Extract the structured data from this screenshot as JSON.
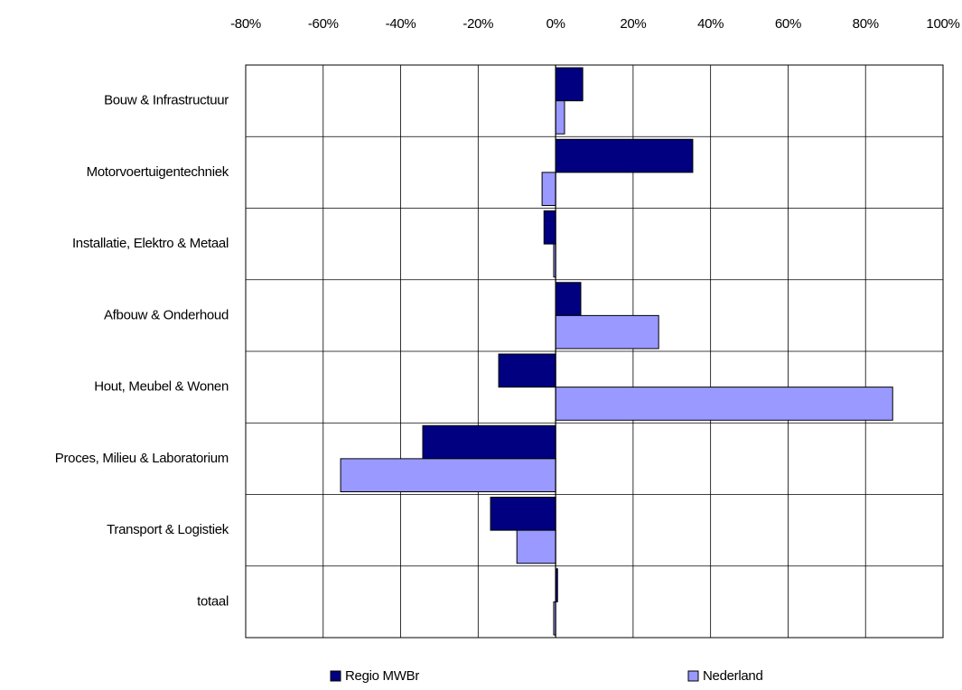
{
  "chart_data": {
    "type": "hbar",
    "categories": [
      "Bouw & Infrastructuur",
      "Motorvoertuigentechniek",
      "Installatie, Elektro & Metaal",
      "Afbouw & Onderhoud",
      "Hout, Meubel & Wonen",
      "Proces, Milieu & Laboratorium",
      "Transport & Logistiek",
      "totaal"
    ],
    "series": [
      {
        "name": "Regio MWBr",
        "color": "#000080",
        "values": [
          7,
          35.4,
          -3,
          6.5,
          -14.7,
          -34.3,
          -16.8,
          0.5
        ]
      },
      {
        "name": "Nederland",
        "color": "#9999ff",
        "values": [
          2.3,
          -3.5,
          -0.5,
          26.6,
          87,
          -55.5,
          -10,
          -0.5
        ]
      }
    ],
    "xlim": [
      -80,
      100
    ],
    "xticks": [
      {
        "value": -80,
        "label": "-80%"
      },
      {
        "value": -60,
        "label": "-60%"
      },
      {
        "value": -40,
        "label": "-40%"
      },
      {
        "value": -20,
        "label": "-20%"
      },
      {
        "value": 0,
        "label": "0%"
      },
      {
        "value": 20,
        "label": "20%"
      },
      {
        "value": 40,
        "label": "40%"
      },
      {
        "value": 60,
        "label": "60%"
      },
      {
        "value": 80,
        "label": "80%"
      },
      {
        "value": 100,
        "label": "100%"
      }
    ],
    "grid": true,
    "legend": "bottom"
  }
}
